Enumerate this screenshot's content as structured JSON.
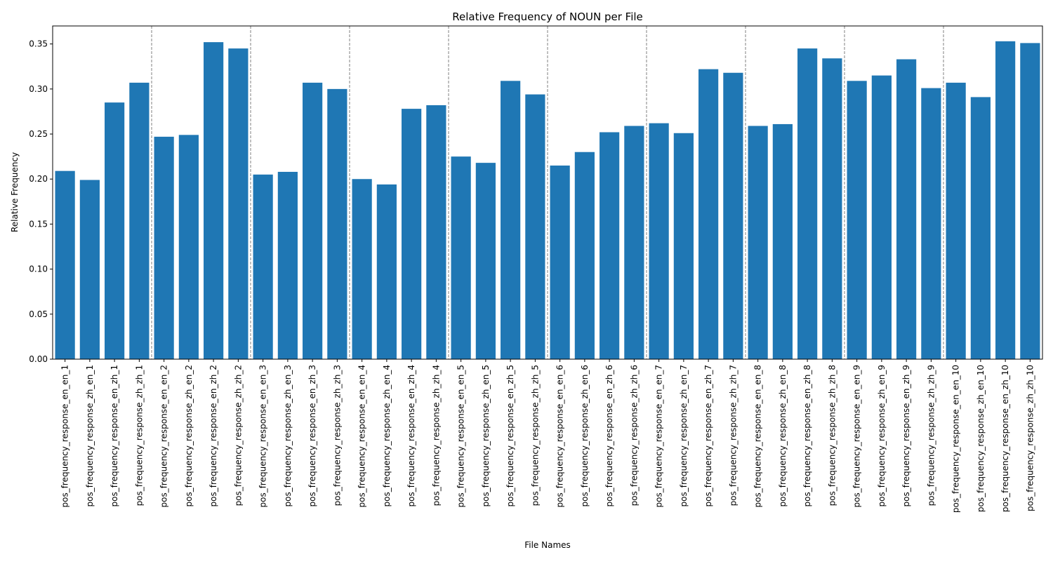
{
  "chart_data": {
    "type": "bar",
    "title": "Relative Frequency of NOUN per File",
    "xlabel": "File Names",
    "ylabel": "Relative Frequency",
    "ylim": [
      0,
      0.37
    ],
    "yticks": [
      "0.00",
      "0.05",
      "0.10",
      "0.15",
      "0.20",
      "0.25",
      "0.30",
      "0.35"
    ],
    "grid": false,
    "legend": "none",
    "bar_color": "#1f77b4",
    "separator_color": "#808080",
    "group_size": 4,
    "categories": [
      "pos_frequency_response_en_en_1",
      "pos_frequency_response_zh_en_1",
      "pos_frequency_response_en_zh_1",
      "pos_frequency_response_zh_zh_1",
      "pos_frequency_response_en_en_2",
      "pos_frequency_response_zh_en_2",
      "pos_frequency_response_en_zh_2",
      "pos_frequency_response_zh_zh_2",
      "pos_frequency_response_en_en_3",
      "pos_frequency_response_zh_en_3",
      "pos_frequency_response_en_zh_3",
      "pos_frequency_response_zh_zh_3",
      "pos_frequency_response_en_en_4",
      "pos_frequency_response_zh_en_4",
      "pos_frequency_response_en_zh_4",
      "pos_frequency_response_zh_zh_4",
      "pos_frequency_response_en_en_5",
      "pos_frequency_response_zh_en_5",
      "pos_frequency_response_en_zh_5",
      "pos_frequency_response_zh_zh_5",
      "pos_frequency_response_en_en_6",
      "pos_frequency_response_zh_en_6",
      "pos_frequency_response_en_zh_6",
      "pos_frequency_response_zh_zh_6",
      "pos_frequency_response_en_en_7",
      "pos_frequency_response_zh_en_7",
      "pos_frequency_response_en_zh_7",
      "pos_frequency_response_zh_zh_7",
      "pos_frequency_response_en_en_8",
      "pos_frequency_response_zh_en_8",
      "pos_frequency_response_en_zh_8",
      "pos_frequency_response_zh_zh_8",
      "pos_frequency_response_en_en_9",
      "pos_frequency_response_zh_en_9",
      "pos_frequency_response_en_zh_9",
      "pos_frequency_response_zh_zh_9",
      "pos_frequency_response_en_en_10",
      "pos_frequency_response_zh_en_10",
      "pos_frequency_response_en_zh_10",
      "pos_frequency_response_zh_zh_10"
    ],
    "values": [
      0.209,
      0.199,
      0.285,
      0.307,
      0.247,
      0.249,
      0.352,
      0.345,
      0.205,
      0.208,
      0.307,
      0.3,
      0.2,
      0.194,
      0.278,
      0.282,
      0.225,
      0.218,
      0.309,
      0.294,
      0.215,
      0.23,
      0.252,
      0.259,
      0.262,
      0.251,
      0.322,
      0.318,
      0.259,
      0.261,
      0.345,
      0.334,
      0.309,
      0.315,
      0.333,
      0.301,
      0.307,
      0.291,
      0.353,
      0.351
    ]
  }
}
